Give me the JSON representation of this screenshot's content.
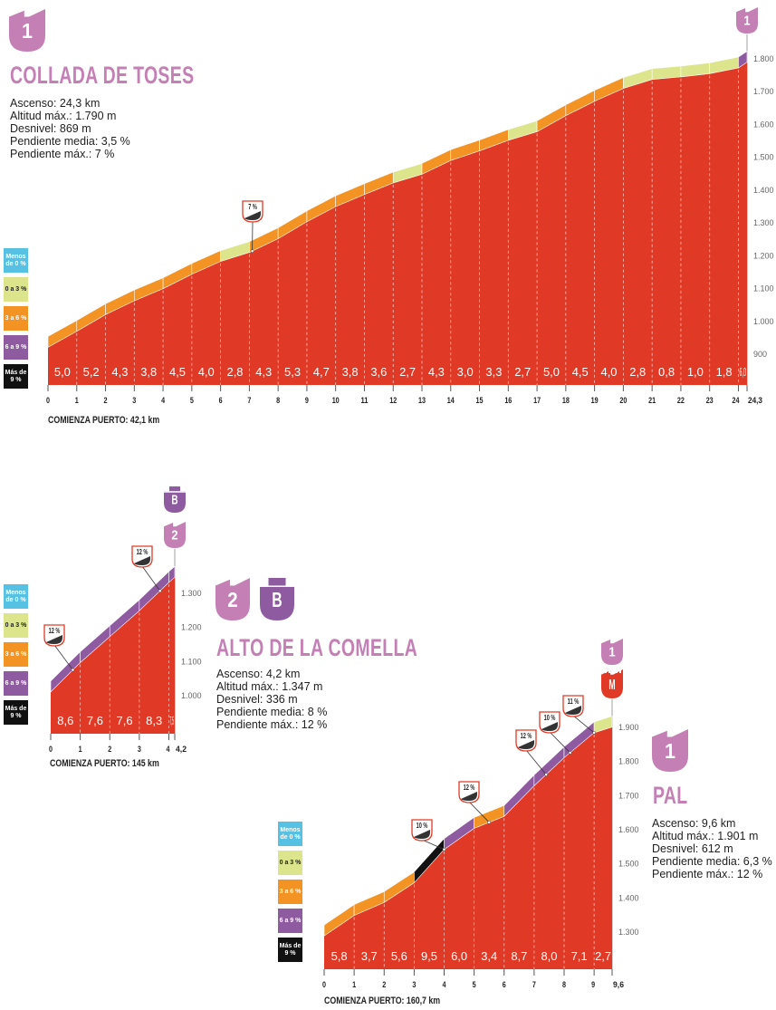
{
  "colors": {
    "profile": "#e03a26",
    "category": "#c47fb5",
    "special": "#8e5aa0",
    "finish": "#e03a26",
    "axis": "#b0b0b0",
    "classes": {
      "neg": "#56c1e3",
      "c0_3": "#dce58c",
      "c3_6": "#f39323",
      "c6_9": "#8e5aa0",
      "c9": "#111111"
    }
  },
  "legend": [
    {
      "label": "Menos de 0 %",
      "key": "neg"
    },
    {
      "label": "0 a 3 %",
      "key": "c0_3"
    },
    {
      "label": "3 a 6 %",
      "key": "c3_6"
    },
    {
      "label": "6 a 9 %",
      "key": "c6_9"
    },
    {
      "label": "Más de 9 %",
      "key": "c9"
    }
  ],
  "climbs": [
    {
      "name": "COLLADA DE TOSES",
      "category": "1",
      "special": null,
      "stats": [
        "Ascenso: 24,3 km",
        "Altitud máx.: 1.790 m",
        "Desnivel: 869 m",
        "Pendiente media: 3,5 %",
        "Pendiente máx.: 7 %"
      ],
      "start": "COMIENZA PUERTO: 42,1 km"
    },
    {
      "name": "ALTO DE LA COMELLA",
      "category": "2",
      "special": "B",
      "stats": [
        "Ascenso: 4,2 km",
        "Altitud máx.: 1.347 m",
        "Desnivel: 336 m",
        "Pendiente media: 8 %",
        "Pendiente máx.: 12 %"
      ],
      "start": "COMIENZA PUERTO: 145 km"
    },
    {
      "name": "PAL",
      "category": "1",
      "special": "M",
      "stats": [
        "Ascenso: 9,6 km",
        "Altitud máx.: 1.901 m",
        "Desnivel: 612 m",
        "Pendiente media: 6,3 %",
        "Pendiente máx.: 12 %"
      ],
      "start": "COMIENZA PUERTO: 160,7 km"
    }
  ],
  "chart_data": [
    {
      "type": "area",
      "title": "COLLADA DE TOSES",
      "xlabel": "km",
      "ylabel": "m",
      "distance_km": 24.3,
      "start_elevation": 921,
      "max_elevation": 1790,
      "km_ticks": [
        "0",
        "1",
        "2",
        "3",
        "4",
        "5",
        "6",
        "7",
        "8",
        "9",
        "10",
        "11",
        "12",
        "13",
        "14",
        "15",
        "16",
        "17",
        "18",
        "19",
        "20",
        "21",
        "22",
        "23",
        "24",
        "24,3"
      ],
      "gradients": [
        "5,0",
        "5,2",
        "4,3",
        "3,8",
        "4,5",
        "4,0",
        "2,8",
        "4,3",
        "5,3",
        "4,7",
        "3,8",
        "3,6",
        "2,7",
        "4,3",
        "3,0",
        "3,3",
        "2,7",
        "5,0",
        "4,5",
        "4,0",
        "2,8",
        "0,8",
        "1,0",
        "1,8",
        "6,0"
      ],
      "y_ticks": [
        "900",
        "1.000",
        "1.100",
        "1.200",
        "1.300",
        "1.400",
        "1.500",
        "1.600",
        "1.700",
        "1.800"
      ],
      "max_grade_markers": [
        {
          "label": "7 %",
          "km": 7.1
        }
      ]
    },
    {
      "type": "area",
      "title": "ALTO DE LA COMELLA",
      "xlabel": "km",
      "ylabel": "m",
      "distance_km": 4.2,
      "start_elevation": 1011,
      "max_elevation": 1347,
      "km_ticks": [
        "0",
        "1",
        "2",
        "3",
        "4",
        "4,2"
      ],
      "gradients": [
        "8,6",
        "7,6",
        "7,6",
        "8,3",
        "7,5"
      ],
      "y_ticks": [
        "1.000",
        "1.100",
        "1.200",
        "1.300"
      ],
      "max_grade_markers": [
        {
          "label": "12 %",
          "km": 0.75
        },
        {
          "label": "12 %",
          "km": 3.7
        }
      ]
    },
    {
      "type": "area",
      "title": "PAL",
      "xlabel": "km",
      "ylabel": "m",
      "distance_km": 9.6,
      "start_elevation": 1289,
      "max_elevation": 1901,
      "km_ticks": [
        "0",
        "1",
        "2",
        "3",
        "4",
        "5",
        "6",
        "7",
        "8",
        "9",
        "9,6"
      ],
      "gradients": [
        "5,8",
        "3,7",
        "5,6",
        "9,5",
        "6,0",
        "3,4",
        "8,7",
        "8,0",
        "7,1",
        "2,7"
      ],
      "y_ticks": [
        "1.300",
        "1.400",
        "1.500",
        "1.600",
        "1.700",
        "1.800",
        "1.900"
      ],
      "max_grade_markers": [
        {
          "label": "10 %",
          "km": 4.0
        },
        {
          "label": "12 %",
          "km": 5.5
        },
        {
          "label": "12 %",
          "km": 7.4
        },
        {
          "label": "10 %",
          "km": 8.2
        },
        {
          "label": "11 %",
          "km": 9.0
        }
      ]
    }
  ]
}
